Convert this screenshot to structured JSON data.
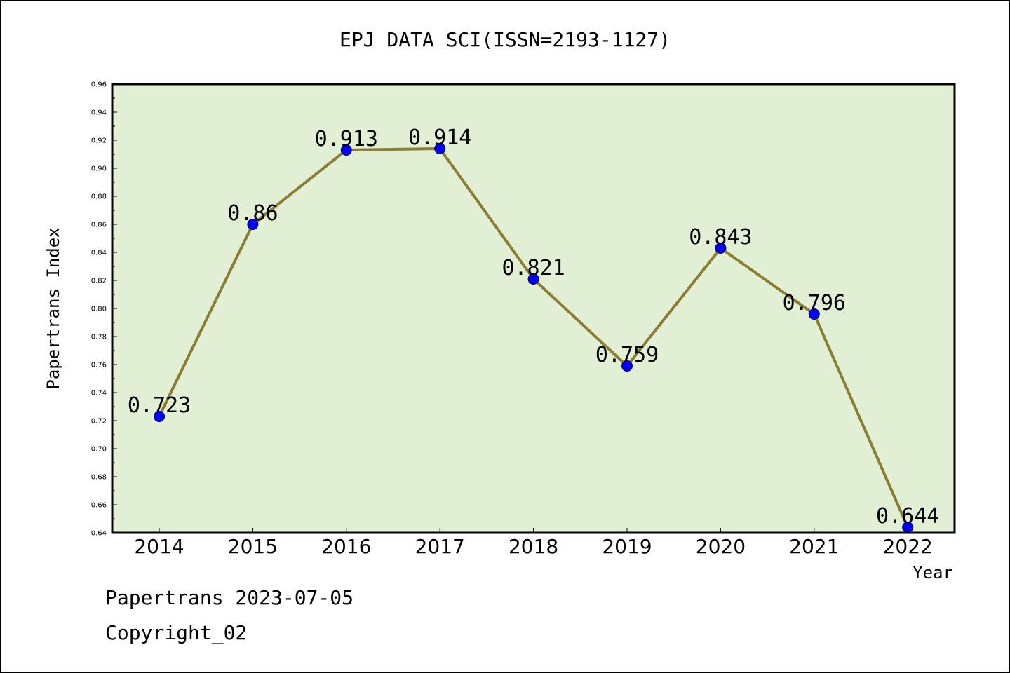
{
  "chart_data": {
    "type": "line",
    "title": "EPJ DATA SCI(ISSN=2193-1127)",
    "xlabel": "Year",
    "ylabel": "Papertrans Index",
    "categories": [
      "2014",
      "2015",
      "2016",
      "2017",
      "2018",
      "2019",
      "2020",
      "2021",
      "2022"
    ],
    "series": [
      {
        "values": [
          0.723,
          0.86,
          0.913,
          0.914,
          0.821,
          0.759,
          0.843,
          0.796,
          0.644
        ],
        "data_labels": [
          "0.723",
          "0.86",
          "0.913",
          "0.914",
          "0.821",
          "0.759",
          "0.843",
          "0.796",
          "0.644"
        ]
      }
    ],
    "ylim": [
      0.64,
      0.96
    ],
    "yticks": [
      "0.64",
      "0.66",
      "0.68",
      "0.70",
      "0.72",
      "0.74",
      "0.76",
      "0.78",
      "0.80",
      "0.82",
      "0.84",
      "0.86",
      "0.88",
      "0.90",
      "0.92",
      "0.94",
      "0.96"
    ],
    "grid": false,
    "legend": "none",
    "colors": {
      "plot_background": "#e1efd5",
      "line": "#8b7d32",
      "marker": "#0000ff",
      "axes": "#000000"
    }
  },
  "footer": {
    "line1": "Papertrans 2023-07-05",
    "line2": "Copyright_02"
  }
}
